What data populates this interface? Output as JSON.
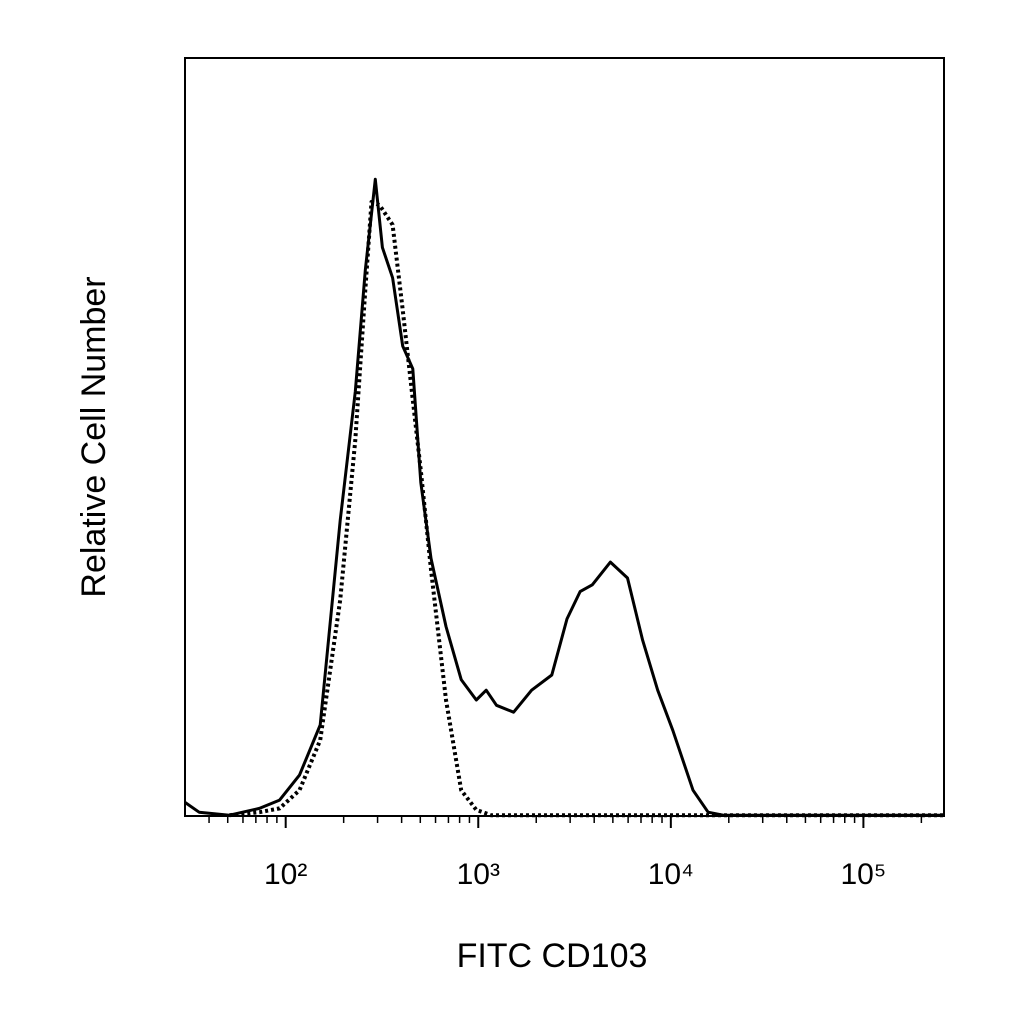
{
  "chart_data": {
    "type": "line",
    "xlabel": "FITC CD103",
    "ylabel": "Relative Cell Number",
    "xscale": "log",
    "xlim": [
      30,
      262144
    ],
    "ylim": [
      0,
      100
    ],
    "xticks": [
      {
        "value": 100,
        "label": "10²"
      },
      {
        "value": 1000,
        "label": "10³"
      },
      {
        "value": 10000,
        "label": "10⁴"
      },
      {
        "value": 100000,
        "label": "10⁵"
      }
    ],
    "xminorticks": [
      40,
      50,
      60,
      70,
      80,
      90,
      200,
      300,
      400,
      500,
      600,
      700,
      800,
      900,
      2000,
      3000,
      4000,
      5000,
      6000,
      7000,
      8000,
      9000,
      20000,
      30000,
      40000,
      50000,
      60000,
      70000,
      80000,
      90000,
      200000
    ],
    "series": [
      {
        "color": "#000000",
        "dash": false,
        "x": [
          30,
          35.5,
          51,
          73,
          93,
          118,
          151,
          192,
          230,
          259,
          292,
          318,
          359,
          405,
          457,
          503,
          568,
          680,
          815,
          977,
          1100,
          1243,
          1525,
          1893,
          2409,
          2890,
          3381,
          3908,
          4855,
          5957,
          7134,
          8551,
          10240,
          13030,
          15620,
          18730,
          262144
        ],
        "values": [
          1.8,
          0.5,
          0.1,
          1,
          2.1,
          5.4,
          12,
          39,
          56,
          72,
          84,
          75,
          71,
          62,
          59,
          44,
          34,
          25,
          18,
          15.3,
          16.6,
          14.6,
          13.7,
          16.6,
          18.6,
          26,
          29.6,
          30.5,
          33.5,
          31.4,
          23.2,
          16.6,
          11.3,
          3.4,
          0.5,
          0.1,
          0.1
        ]
      },
      {
        "color": "#000000",
        "dash": true,
        "x": [
          51,
          73,
          93,
          118,
          151,
          192,
          230,
          259,
          279,
          307,
          359,
          405,
          457,
          503,
          568,
          680,
          815,
          977,
          1166,
          262144
        ],
        "values": [
          0.1,
          0.5,
          1,
          3.4,
          10,
          28.5,
          49.6,
          69.4,
          81,
          80.6,
          78,
          66.8,
          54.9,
          45.6,
          32.5,
          15.3,
          3.4,
          0.8,
          0.1,
          0.1
        ]
      }
    ]
  }
}
